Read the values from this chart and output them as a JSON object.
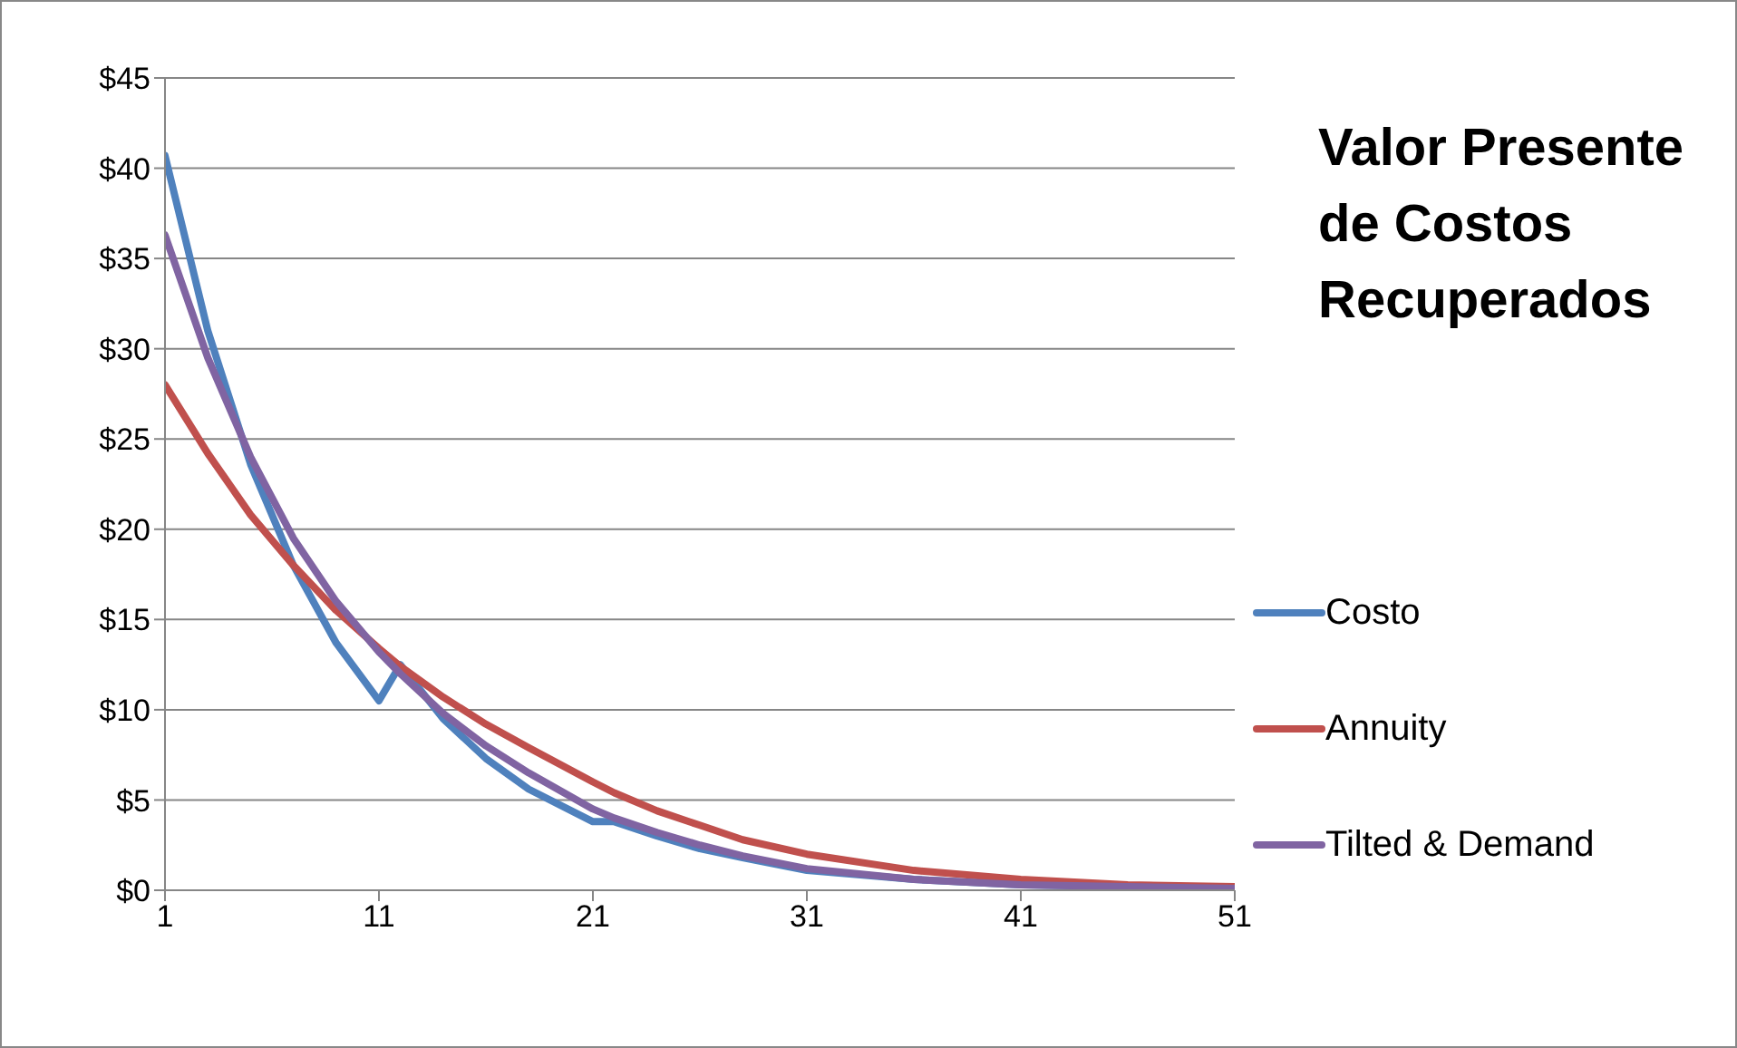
{
  "chart_data": {
    "type": "line",
    "title": "Valor Presente de Costos Recuperados",
    "xlim": [
      1,
      51
    ],
    "xticks": [
      1,
      11,
      21,
      31,
      41,
      51
    ],
    "ylim": [
      0,
      45
    ],
    "yticks": [
      {
        "value": 0,
        "label": "$0"
      },
      {
        "value": 5,
        "label": "$5"
      },
      {
        "value": 10,
        "label": "$10"
      },
      {
        "value": 15,
        "label": "$15"
      },
      {
        "value": 20,
        "label": "$20"
      },
      {
        "value": 25,
        "label": "$25"
      },
      {
        "value": 30,
        "label": "$30"
      },
      {
        "value": 35,
        "label": "$35"
      },
      {
        "value": 40,
        "label": "$40"
      },
      {
        "value": 45,
        "label": "$45"
      }
    ],
    "grid": "y",
    "legend": "right",
    "marker": "none",
    "line_style": "solid",
    "series": [
      {
        "name": "Costo",
        "color": "#4f81bd",
        "x": [
          1,
          3,
          5,
          7,
          9,
          11,
          12,
          14,
          16,
          18,
          21,
          22,
          24,
          26,
          28,
          31,
          36,
          41,
          46,
          51
        ],
        "values": [
          40.7,
          31.0,
          23.6,
          18.0,
          13.7,
          10.5,
          12.5,
          9.5,
          7.3,
          5.6,
          3.8,
          3.8,
          3.0,
          2.3,
          1.8,
          1.1,
          0.6,
          0.3,
          0.2,
          0.1
        ]
      },
      {
        "name": "Annuity",
        "color": "#c0504d",
        "x": [
          1,
          3,
          5,
          7,
          9,
          11,
          12,
          14,
          16,
          18,
          21,
          22,
          24,
          26,
          28,
          31,
          36,
          41,
          46,
          51
        ],
        "values": [
          28.0,
          24.2,
          20.8,
          18.0,
          15.5,
          13.4,
          12.4,
          10.7,
          9.2,
          7.9,
          6.0,
          5.4,
          4.4,
          3.6,
          2.8,
          2.0,
          1.1,
          0.6,
          0.3,
          0.2
        ]
      },
      {
        "name": "Tilted & Demand",
        "color": "#8064a2",
        "x": [
          1,
          3,
          5,
          7,
          9,
          11,
          12,
          14,
          16,
          18,
          21,
          22,
          24,
          26,
          28,
          31,
          36,
          41,
          46,
          51
        ],
        "values": [
          36.3,
          29.5,
          24.0,
          19.5,
          16.0,
          13.2,
          12.0,
          9.8,
          8.0,
          6.5,
          4.5,
          4.0,
          3.2,
          2.5,
          1.9,
          1.2,
          0.6,
          0.3,
          0.2,
          0.1
        ]
      }
    ]
  }
}
